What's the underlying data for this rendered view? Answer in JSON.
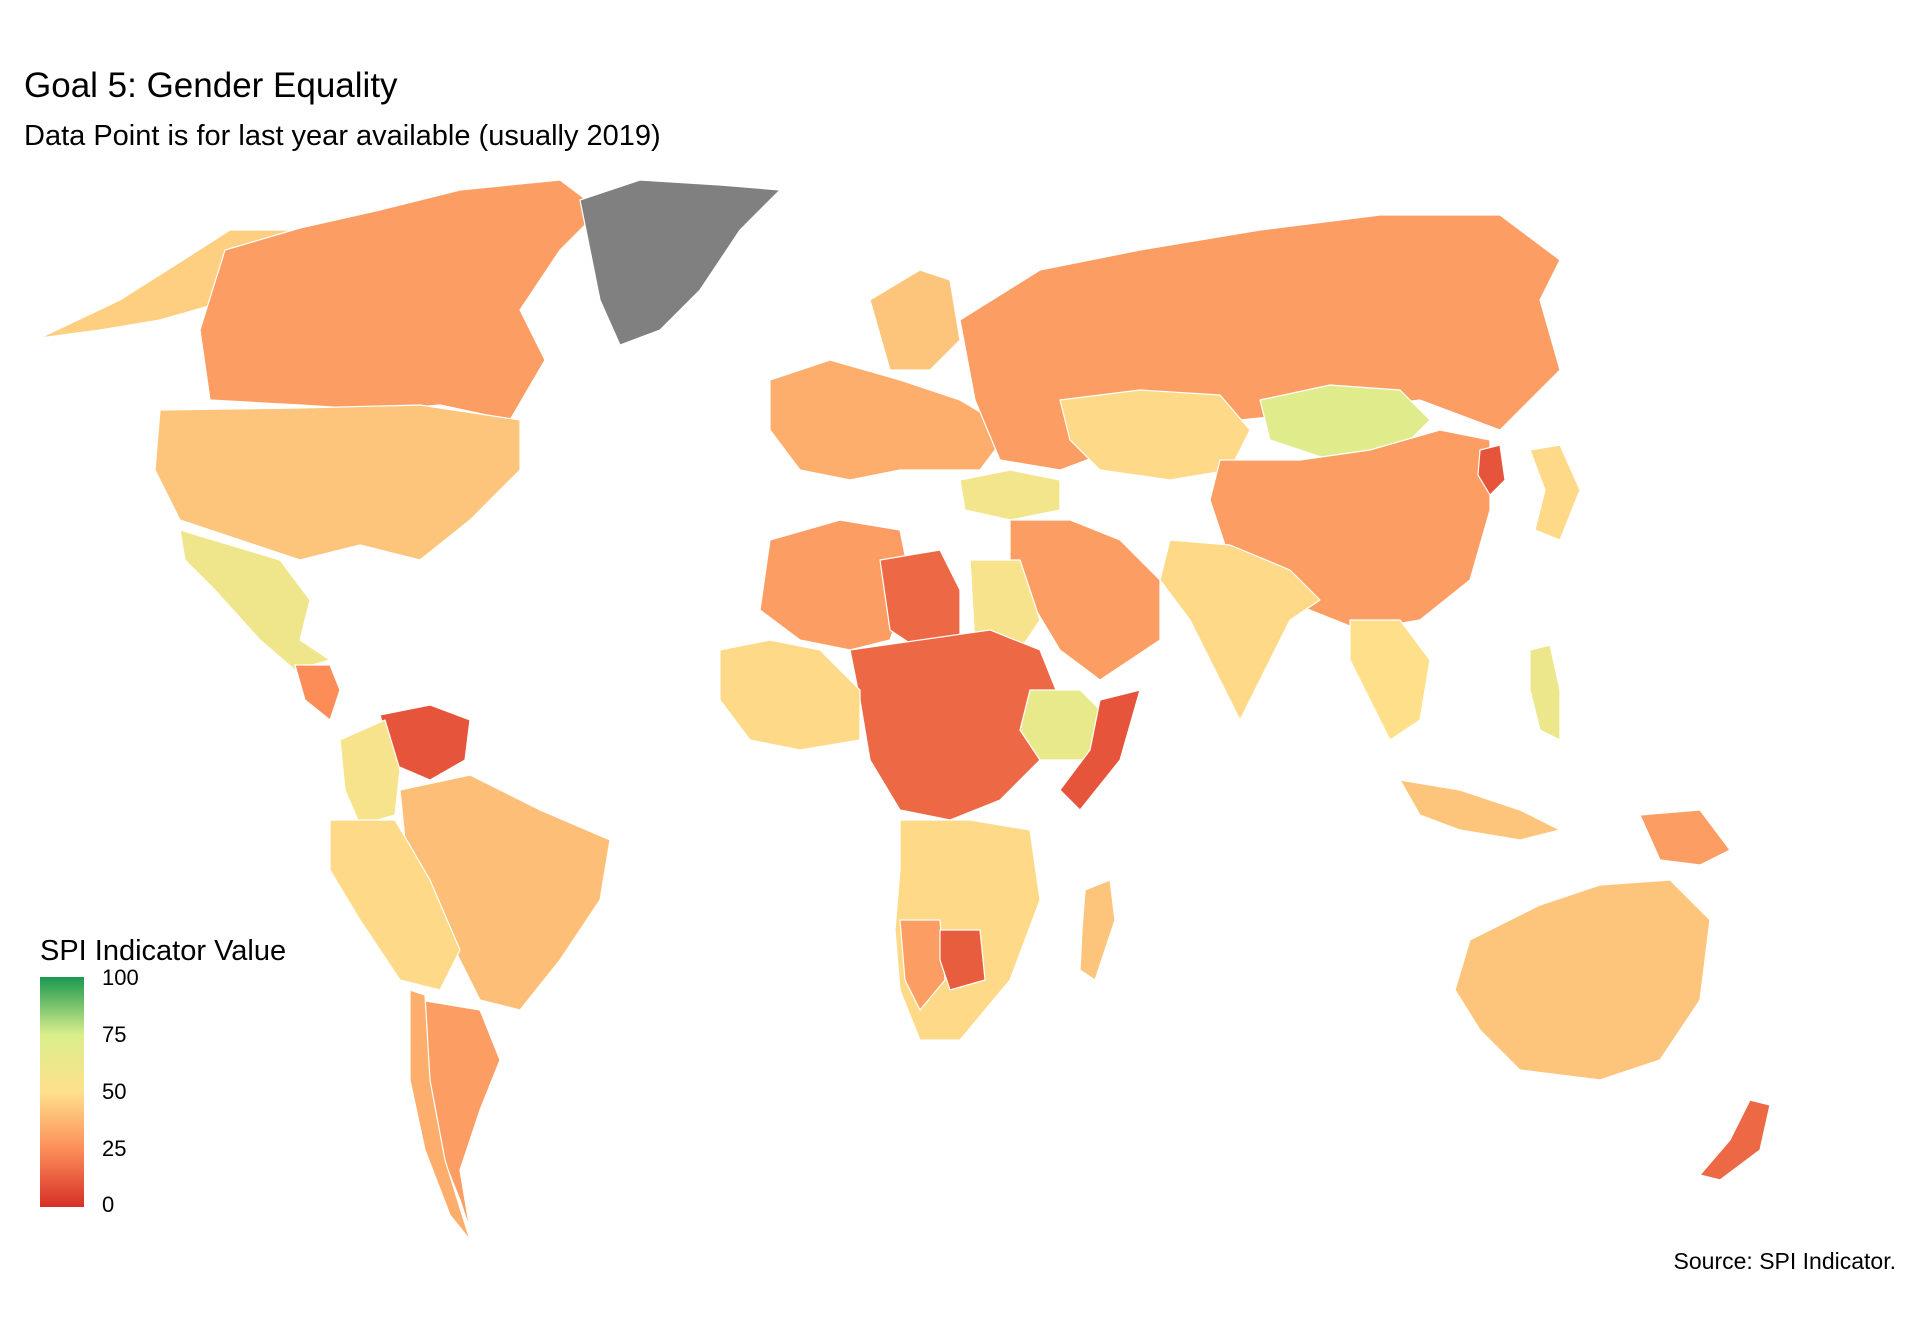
{
  "title": "Goal 5: Gender Equality",
  "subtitle": "Data Point is for last year available (usually 2019)",
  "legend": {
    "title": "SPI Indicator Value",
    "ticks": [
      "100",
      "75",
      "50",
      "25",
      "0"
    ],
    "scale_low_color": "#d73027",
    "scale_mid_color": "#fee08b",
    "scale_high_color": "#1a9850",
    "missing_color": "#808080"
  },
  "source": "Source: SPI Indicator.",
  "regions": [
    {
      "name": "Alaska",
      "value": 45
    },
    {
      "name": "Canada",
      "value": 30
    },
    {
      "name": "Greenland",
      "value": null
    },
    {
      "name": "United States",
      "value": 42
    },
    {
      "name": "Mexico",
      "value": 60
    },
    {
      "name": "Central America",
      "value": 25
    },
    {
      "name": "Venezuela",
      "value": 10
    },
    {
      "name": "Colombia",
      "value": 55
    },
    {
      "name": "Brazil",
      "value": 40
    },
    {
      "name": "Peru / Bolivia",
      "value": 48
    },
    {
      "name": "Argentina",
      "value": 30
    },
    {
      "name": "Chile",
      "value": 35
    },
    {
      "name": "Western Europe",
      "value": 35
    },
    {
      "name": "Scandinavia",
      "value": 42
    },
    {
      "name": "Russia",
      "value": 30
    },
    {
      "name": "Kazakhstan",
      "value": 48
    },
    {
      "name": "Mongolia",
      "value": 70
    },
    {
      "name": "China",
      "value": 30
    },
    {
      "name": "India",
      "value": 48
    },
    {
      "name": "Middle East",
      "value": 30
    },
    {
      "name": "Turkey",
      "value": 58
    },
    {
      "name": "North-West Africa",
      "value": 30
    },
    {
      "name": "Libya",
      "value": 15
    },
    {
      "name": "Egypt",
      "value": 55
    },
    {
      "name": "Sahel / Central Africa",
      "value": 15
    },
    {
      "name": "West Africa",
      "value": 48
    },
    {
      "name": "Ethiopia",
      "value": 65
    },
    {
      "name": "Somalia",
      "value": 10
    },
    {
      "name": "Southern Africa",
      "value": 48
    },
    {
      "name": "Namibia",
      "value": 30
    },
    {
      "name": "Botswana",
      "value": 12
    },
    {
      "name": "Madagascar",
      "value": 42
    },
    {
      "name": "South-East Asia",
      "value": 50
    },
    {
      "name": "Philippines",
      "value": 62
    },
    {
      "name": "Indonesia",
      "value": 42
    },
    {
      "name": "Papua New Guinea",
      "value": 30
    },
    {
      "name": "Australia",
      "value": 42
    },
    {
      "name": "New Zealand",
      "value": 15
    },
    {
      "name": "Japan",
      "value": 48
    },
    {
      "name": "North Korea",
      "value": 10
    }
  ]
}
